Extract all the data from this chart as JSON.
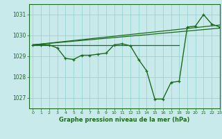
{
  "title": "Graphe pression niveau de la mer (hPa)",
  "bg_color": "#c8eaea",
  "grid_color": "#8fcfcf",
  "line_color": "#1a6b1a",
  "xlim": [
    -0.5,
    23
  ],
  "ylim": [
    1026.5,
    1031.5
  ],
  "yticks": [
    1027,
    1028,
    1029,
    1030,
    1031
  ],
  "xticks": [
    0,
    1,
    2,
    3,
    4,
    5,
    6,
    7,
    8,
    9,
    10,
    11,
    12,
    13,
    14,
    15,
    16,
    17,
    18,
    19,
    20,
    21,
    22,
    23
  ],
  "main_x": [
    0,
    1,
    2,
    3,
    4,
    5,
    6,
    7,
    8,
    9,
    10,
    11,
    12,
    13,
    14,
    15,
    16,
    17,
    18,
    19,
    20,
    21,
    22,
    23
  ],
  "main_y": [
    1029.55,
    1029.55,
    1029.55,
    1029.4,
    1028.9,
    1028.85,
    1029.05,
    1029.05,
    1029.1,
    1029.15,
    1029.55,
    1029.6,
    1029.5,
    1028.85,
    1028.3,
    1026.95,
    1026.95,
    1027.75,
    1027.8,
    1030.4,
    1030.45,
    1031.0,
    1030.55,
    1030.4
  ],
  "ref_lines": [
    {
      "x": [
        0,
        18
      ],
      "y": [
        1029.55,
        1029.55
      ]
    },
    {
      "x": [
        0,
        23
      ],
      "y": [
        1029.55,
        1030.5
      ]
    },
    {
      "x": [
        0,
        23
      ],
      "y": [
        1029.55,
        1030.35
      ]
    }
  ]
}
